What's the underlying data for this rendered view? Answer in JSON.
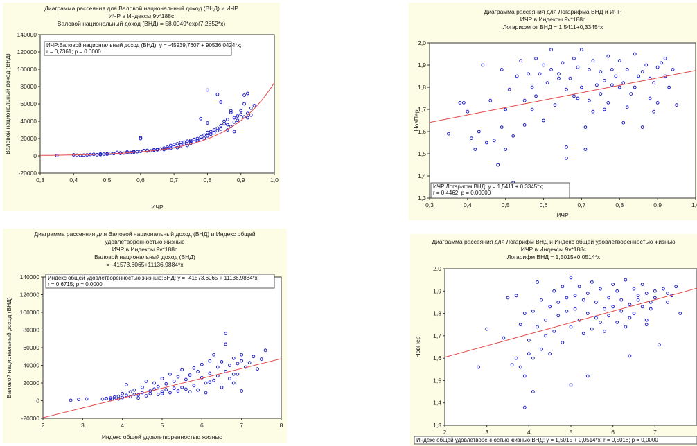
{
  "chart_data": [
    {
      "type": "scatter",
      "title_lines": [
        "Диаграмма рассеяния для Валовой национальный доход (ВНД) и ИЧР",
        "ИЧР в Индексы 9v*188c",
        "Валовой национальный доход (ВНД) = 58,0049*exp(7,2852*x)"
      ],
      "xlabel": "ИЧР",
      "ylabel": "Валовой национальный доход (ВНД)",
      "xlim": [
        0.3,
        1.0
      ],
      "ylim": [
        -20000,
        140000
      ],
      "xticks": [
        "0,3",
        "0,4",
        "0,5",
        "0,6",
        "0,7",
        "0,8",
        "0,9",
        "1,0"
      ],
      "yticks": [
        "-20000",
        "0",
        "20000",
        "40000",
        "60000",
        "80000",
        "100000",
        "120000",
        "140000"
      ],
      "annotation": [
        "ИЧР:Валовой национгальный доход (ВНД):   y = -45939,7607 + 90536,0424*x;",
        "r = 0,7361; p = 0.0000"
      ],
      "fit": {
        "kind": "exp",
        "a": 58.0049,
        "b": 7.2852
      },
      "x": [
        0.35,
        0.4,
        0.41,
        0.42,
        0.43,
        0.44,
        0.45,
        0.46,
        0.47,
        0.48,
        0.48,
        0.49,
        0.5,
        0.5,
        0.51,
        0.52,
        0.53,
        0.54,
        0.54,
        0.55,
        0.56,
        0.56,
        0.57,
        0.58,
        0.58,
        0.59,
        0.6,
        0.6,
        0.61,
        0.62,
        0.62,
        0.63,
        0.64,
        0.64,
        0.65,
        0.65,
        0.66,
        0.67,
        0.67,
        0.68,
        0.68,
        0.69,
        0.69,
        0.7,
        0.7,
        0.71,
        0.71,
        0.72,
        0.72,
        0.72,
        0.73,
        0.73,
        0.74,
        0.74,
        0.75,
        0.75,
        0.75,
        0.76,
        0.76,
        0.77,
        0.77,
        0.78,
        0.78,
        0.78,
        0.79,
        0.79,
        0.8,
        0.8,
        0.8,
        0.81,
        0.81,
        0.82,
        0.82,
        0.83,
        0.83,
        0.83,
        0.84,
        0.84,
        0.85,
        0.85,
        0.86,
        0.86,
        0.87,
        0.87,
        0.88,
        0.88,
        0.89,
        0.89,
        0.9,
        0.9,
        0.91,
        0.91,
        0.92,
        0.92,
        0.93,
        0.93,
        0.94,
        0.6,
        0.78,
        0.8,
        0.84,
        0.86,
        0.87,
        0.88,
        0.91,
        0.92
      ],
      "y": [
        400,
        1200,
        800,
        700,
        900,
        1100,
        1500,
        1800,
        1300,
        1400,
        2200,
        2000,
        2400,
        1900,
        3000,
        2600,
        4000,
        3500,
        2800,
        3200,
        3600,
        4500,
        3900,
        4200,
        5000,
        4700,
        5200,
        21000,
        6100,
        5500,
        6400,
        5800,
        7000,
        6600,
        7500,
        6900,
        8000,
        7200,
        9000,
        8500,
        10000,
        8800,
        12000,
        10500,
        13000,
        9500,
        14000,
        11000,
        15500,
        12500,
        16000,
        13500,
        12000,
        17000,
        14500,
        18000,
        16500,
        16000,
        19000,
        20000,
        17500,
        22000,
        18500,
        21500,
        24000,
        20500,
        27000,
        23000,
        76000,
        25000,
        28000,
        30000,
        26500,
        32000,
        29000,
        71000,
        35000,
        31000,
        40000,
        37000,
        42000,
        36000,
        50000,
        34000,
        44000,
        39000,
        46000,
        41000,
        48000,
        52000,
        45000,
        60000,
        49000,
        72000,
        55000,
        47000,
        58000,
        20000,
        43000,
        38000,
        62000,
        30000,
        52000,
        28000,
        70000,
        44000
      ]
    },
    {
      "type": "scatter",
      "title_lines": [
        "Диаграмма рассеяния для Логарифма ВНД и ИЧР",
        "ИЧР в Индексы 9v*188c",
        "Логарифм от ВНД = 1,5411+0,3345*x"
      ],
      "xlabel": "ИЧР",
      "ylabel": "НовПер",
      "xlim": [
        0.3,
        1.0
      ],
      "ylim": [
        1.3,
        2.0
      ],
      "xticks": [
        "0,3",
        "0,4",
        "0,5",
        "0,6",
        "0,7",
        "0,8",
        "0,9",
        "1,0"
      ],
      "yticks": [
        "1,3",
        "1,4",
        "1,5",
        "1,6",
        "1,7",
        "1,8",
        "1,9",
        "2,0"
      ],
      "annotation": [
        "ИЧР:Логарифм ВНД:   y = 1,5411 + 0,3345*x;",
        "r = 0,4462; p = 0,00000"
      ],
      "fit": {
        "kind": "linear",
        "a": 1.5411,
        "b": 0.3345
      },
      "x": [
        0.35,
        0.38,
        0.39,
        0.4,
        0.41,
        0.42,
        0.43,
        0.44,
        0.45,
        0.46,
        0.47,
        0.48,
        0.49,
        0.49,
        0.5,
        0.5,
        0.51,
        0.52,
        0.53,
        0.54,
        0.55,
        0.55,
        0.56,
        0.57,
        0.58,
        0.58,
        0.59,
        0.6,
        0.61,
        0.62,
        0.62,
        0.63,
        0.64,
        0.64,
        0.65,
        0.66,
        0.66,
        0.67,
        0.68,
        0.68,
        0.69,
        0.7,
        0.7,
        0.71,
        0.72,
        0.72,
        0.73,
        0.73,
        0.74,
        0.75,
        0.75,
        0.76,
        0.77,
        0.77,
        0.78,
        0.78,
        0.79,
        0.8,
        0.8,
        0.81,
        0.82,
        0.82,
        0.83,
        0.84,
        0.84,
        0.85,
        0.86,
        0.86,
        0.87,
        0.88,
        0.88,
        0.89,
        0.9,
        0.9,
        0.91,
        0.92,
        0.92,
        0.93,
        0.94,
        0.95,
        0.52,
        0.6,
        0.66,
        0.71,
        0.76,
        0.81,
        0.89,
        0.48,
        0.57,
        0.69
      ],
      "y": [
        1.59,
        1.73,
        1.73,
        1.69,
        1.57,
        1.52,
        1.6,
        1.9,
        1.55,
        1.74,
        1.56,
        1.45,
        1.62,
        1.88,
        1.7,
        1.52,
        1.79,
        1.58,
        1.85,
        1.92,
        1.74,
        1.63,
        1.86,
        1.8,
        1.93,
        1.76,
        1.86,
        1.9,
        1.82,
        1.97,
        1.88,
        1.72,
        1.86,
        1.84,
        1.91,
        1.53,
        1.79,
        1.84,
        1.93,
        1.76,
        1.89,
        1.97,
        1.8,
        1.52,
        1.88,
        1.74,
        1.92,
        1.69,
        1.81,
        1.87,
        1.77,
        1.83,
        1.94,
        1.73,
        1.88,
        1.81,
        1.85,
        1.8,
        1.92,
        1.82,
        1.71,
        1.88,
        1.77,
        1.95,
        1.8,
        1.85,
        1.62,
        1.87,
        1.9,
        1.75,
        1.84,
        1.82,
        1.89,
        1.73,
        1.91,
        1.93,
        1.85,
        1.8,
        1.88,
        1.72,
        1.37,
        1.65,
        1.48,
        1.62,
        1.7,
        1.64,
        1.69,
        1.45,
        1.7,
        1.75
      ]
    },
    {
      "type": "scatter",
      "title_lines": [
        "Диаграмма рассеяния для Валовой национальный доход (ВНД) и Индекс общей",
        "удовлетворенностью жизнью",
        "ИЧР в Индексы 9v*188c",
        "Валовой национальный доход (ВНД)",
        "= -41573,6065+11136,9884*x"
      ],
      "xlabel": "Индекс общей удовлетворенностью жизнью",
      "ylabel": "Валовой национальный доход (ВНД)",
      "xlim": [
        2,
        8
      ],
      "ylim": [
        -20000,
        140000
      ],
      "xticks": [
        "2",
        "3",
        "4",
        "5",
        "6",
        "7",
        "8"
      ],
      "yticks": [
        "-20000",
        "0",
        "20000",
        "40000",
        "60000",
        "80000",
        "100000",
        "120000",
        "140000"
      ],
      "annotation": [
        "Индекс общей удовлетворенностью жизнью:ВНД:   y = -41573,6065 + 11136,9884*x;",
        "r = 0,6715; p = 0.0000"
      ],
      "fit": {
        "kind": "linear",
        "a": -41573.6065,
        "b": 11136.9884
      },
      "x": [
        2.7,
        2.9,
        3.1,
        3.5,
        3.6,
        3.7,
        3.7,
        3.8,
        3.8,
        3.9,
        3.9,
        4.0,
        4.0,
        4.1,
        4.1,
        4.2,
        4.2,
        4.3,
        4.3,
        4.4,
        4.4,
        4.5,
        4.5,
        4.6,
        4.6,
        4.7,
        4.7,
        4.8,
        4.8,
        4.9,
        4.9,
        5.0,
        5.0,
        5.1,
        5.1,
        5.2,
        5.2,
        5.3,
        5.3,
        5.4,
        5.4,
        5.5,
        5.5,
        5.6,
        5.6,
        5.7,
        5.7,
        5.8,
        5.8,
        5.9,
        5.9,
        6.0,
        6.0,
        6.1,
        6.1,
        6.2,
        6.2,
        6.3,
        6.3,
        6.4,
        6.4,
        6.5,
        6.5,
        6.6,
        6.6,
        6.7,
        6.7,
        6.8,
        6.8,
        6.9,
        6.9,
        7.0,
        7.0,
        7.1,
        7.2,
        7.3,
        7.4,
        7.5,
        7.6,
        6.6,
        6.2,
        4.5,
        5.0,
        6.8,
        7.0
      ],
      "y": [
        500,
        1500,
        2000,
        1800,
        2500,
        1200,
        3000,
        2200,
        4000,
        1800,
        5000,
        3500,
        8000,
        6000,
        18000,
        4500,
        10000,
        7000,
        12000,
        3000,
        6500,
        9000,
        15000,
        5500,
        22000,
        8000,
        11000,
        13000,
        20000,
        7000,
        16000,
        10000,
        25000,
        12500,
        19000,
        9000,
        30000,
        14000,
        22000,
        11000,
        27000,
        15000,
        35000,
        13000,
        24000,
        10000,
        29000,
        17000,
        37000,
        12000,
        33000,
        26000,
        41000,
        20000,
        9000,
        45000,
        31000,
        23000,
        52000,
        28000,
        38000,
        15000,
        44000,
        76000,
        33000,
        25000,
        40000,
        48000,
        20000,
        42000,
        30000,
        45000,
        11000,
        38000,
        43000,
        50000,
        36000,
        47000,
        57000,
        64000,
        21000,
        15000,
        8000,
        30000,
        52000
      ]
    },
    {
      "type": "scatter",
      "title_lines": [
        "Диаграмма рассеяния для Логарифм ВНД и Индекс общей удовлетворенностью жизнью",
        "ИЧР в Индексы 9v*188c",
        "Логарифм ВНД = 1,5015+0,0514*x"
      ],
      "xlabel": "",
      "ylabel": "НовПер",
      "xlim": [
        2,
        8
      ],
      "ylim": [
        1.3,
        2.0
      ],
      "xticks": [
        "2",
        "3",
        "4",
        "5",
        "6",
        "7"
      ],
      "yticks": [
        "1,3",
        "1,4",
        "1,5",
        "1,6",
        "1,7",
        "1,8",
        "1,9",
        "2,0"
      ],
      "annotation": [
        "Индекс общей удовлетворенностью жизнью:ВНД:   y = 1,5015 + 0,0514*x;  r = 0,5018; p = 0,0000"
      ],
      "fit": {
        "kind": "linear",
        "a": 1.5015,
        "b": 0.0514
      },
      "x": [
        2.8,
        3.0,
        3.4,
        3.5,
        3.6,
        3.7,
        3.7,
        3.8,
        3.8,
        3.9,
        3.9,
        4.0,
        4.0,
        4.1,
        4.1,
        4.2,
        4.2,
        4.3,
        4.3,
        4.4,
        4.4,
        4.5,
        4.5,
        4.6,
        4.6,
        4.7,
        4.7,
        4.8,
        4.8,
        4.9,
        4.9,
        5.0,
        5.0,
        5.1,
        5.1,
        5.2,
        5.2,
        5.3,
        5.3,
        5.4,
        5.4,
        5.5,
        5.5,
        5.6,
        5.6,
        5.7,
        5.7,
        5.8,
        5.8,
        5.9,
        5.9,
        6.0,
        6.0,
        6.1,
        6.1,
        6.2,
        6.2,
        6.3,
        6.3,
        6.4,
        6.4,
        6.5,
        6.5,
        6.6,
        6.6,
        6.7,
        6.7,
        6.8,
        6.8,
        6.9,
        6.9,
        7.0,
        7.0,
        7.1,
        7.2,
        7.3,
        7.4,
        7.5,
        7.6,
        3.9,
        5.4,
        6.4,
        4.1,
        5.0,
        6.8,
        7.3
      ],
      "y": [
        1.56,
        1.73,
        1.69,
        1.87,
        1.57,
        1.6,
        1.88,
        1.56,
        1.75,
        1.52,
        1.8,
        1.62,
        1.68,
        1.45,
        1.81,
        1.74,
        1.94,
        1.64,
        1.86,
        1.77,
        1.7,
        1.83,
        1.62,
        1.9,
        1.72,
        1.85,
        1.79,
        1.92,
        1.67,
        1.87,
        1.81,
        1.96,
        1.74,
        1.82,
        1.88,
        1.77,
        1.92,
        1.71,
        1.86,
        1.8,
        1.89,
        1.73,
        1.94,
        1.78,
        1.85,
        1.76,
        1.91,
        1.82,
        1.72,
        1.87,
        1.79,
        1.93,
        1.83,
        1.76,
        1.9,
        1.81,
        1.86,
        1.74,
        1.95,
        1.84,
        1.78,
        1.91,
        1.8,
        1.86,
        1.88,
        1.83,
        1.93,
        1.77,
        1.89,
        1.85,
        1.82,
        1.9,
        1.87,
        1.66,
        1.91,
        1.85,
        1.88,
        1.92,
        1.8,
        1.38,
        1.52,
        1.61,
        1.6,
        1.48,
        1.75,
        1.89
      ]
    }
  ]
}
